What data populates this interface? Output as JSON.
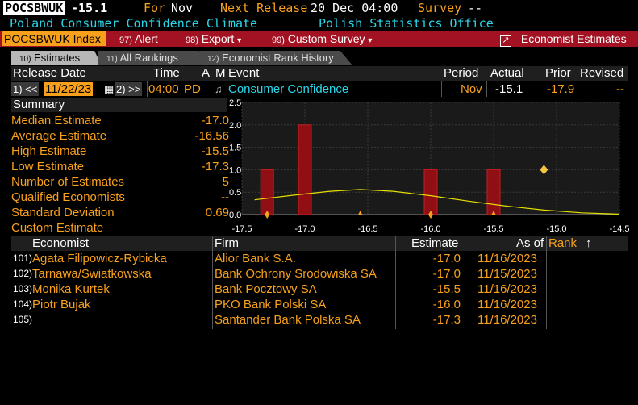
{
  "header": {
    "ticker": "POCSBWUK",
    "value": "-15.1",
    "for_label": "For",
    "for_value": "Nov",
    "next_release_label": "Next Release",
    "next_release_value": "20 Dec 04:00",
    "survey_label": "Survey",
    "survey_value": "--",
    "title": "Poland Consumer Confidence Climate",
    "source": "Polish Statistics Office"
  },
  "toolbar": {
    "index_label": "POCSBWUK Index",
    "alert_num": "97)",
    "alert_label": "Alert",
    "export_num": "98)",
    "export_label": "Export",
    "custom_num": "99)",
    "custom_label": "Custom Survey",
    "economist_label": "Economist Estimates",
    "caret": "▾",
    "launch_icon": "↗"
  },
  "tabs": [
    {
      "num": "10)",
      "label": "Estimates"
    },
    {
      "num": "11)",
      "label": "All Rankings"
    },
    {
      "num": "12)",
      "label": "Economist Rank History"
    }
  ],
  "release_table": {
    "headers": {
      "release_date": "Release Date",
      "time": "Time",
      "a": "A",
      "m": "M",
      "event": "Event",
      "period": "Period",
      "actual": "Actual",
      "prior": "Prior",
      "revised": "Revised"
    },
    "row": {
      "prev_btn": "1) <<",
      "date": "11/22/23",
      "calendar_icon": "▦",
      "next_btn": "2) >>",
      "time": "04:00",
      "tz": "PD",
      "bell_icon": "♫",
      "event": "Consumer Confidence",
      "period": "Nov",
      "actual": "-15.1",
      "prior": "-17.9",
      "revised": "--"
    }
  },
  "summary": {
    "title": "Summary",
    "rows": [
      {
        "label": "Median Estimate",
        "value": "-17.0"
      },
      {
        "label": "Average Estimate",
        "value": "-16.56"
      },
      {
        "label": "High Estimate",
        "value": "-15.5"
      },
      {
        "label": "Low Estimate",
        "value": "-17.3"
      },
      {
        "label": "Number of Estimates",
        "value": "5"
      },
      {
        "label": "Qualified Economists",
        "value": "--"
      },
      {
        "label": "Standard Deviation",
        "value": "0.69"
      },
      {
        "label": "Custom Estimate",
        "value": ""
      }
    ]
  },
  "chart_data": {
    "type": "bar",
    "x_ticks": [
      "-17.5",
      "-17.0",
      "-16.5",
      "-16.0",
      "-15.5",
      "-15.0",
      "-14.5"
    ],
    "x_tick_values": [
      -17.5,
      -17.0,
      -16.5,
      -16.0,
      -15.5,
      -15.0,
      -14.5
    ],
    "y_ticks": [
      "0.0",
      "0.5",
      "1.0",
      "1.5",
      "2.0",
      "2.5"
    ],
    "y_tick_values": [
      0,
      0.5,
      1.0,
      1.5,
      2.0,
      2.5
    ],
    "xlim": [
      -17.5,
      -14.5
    ],
    "ylim": [
      0,
      2.5
    ],
    "bars": [
      {
        "x": -17.3,
        "count": 1
      },
      {
        "x": -17.0,
        "count": 2
      },
      {
        "x": -16.0,
        "count": 1
      },
      {
        "x": -15.5,
        "count": 1
      }
    ],
    "distribution_curve": [
      {
        "x": -17.4,
        "y": 0.33
      },
      {
        "x": -17.1,
        "y": 0.43
      },
      {
        "x": -16.8,
        "y": 0.52
      },
      {
        "x": -16.56,
        "y": 0.56
      },
      {
        "x": -16.3,
        "y": 0.52
      },
      {
        "x": -16.0,
        "y": 0.42
      },
      {
        "x": -15.7,
        "y": 0.3
      },
      {
        "x": -15.4,
        "y": 0.19
      },
      {
        "x": -15.1,
        "y": 0.1
      },
      {
        "x": -14.8,
        "y": 0.04
      },
      {
        "x": -14.5,
        "y": 0.01
      }
    ],
    "actual_marker": {
      "x": -15.1,
      "y": 1.0
    },
    "axis_markers": [
      {
        "x": -17.3,
        "shape": "diamond"
      },
      {
        "x": -16.56,
        "shape": "triangle"
      },
      {
        "x": -16.0,
        "shape": "diamond"
      },
      {
        "x": -15.5,
        "shape": "triangle"
      }
    ],
    "grid": true,
    "colors": {
      "bar": "#8f0f14",
      "bar_edge": "#c21f1f",
      "curve": "#e6e000",
      "marker": "#f5c542",
      "axis_marker": "#f7a01c",
      "grid": "#3a3a3a",
      "bg": "#1a1a1a"
    }
  },
  "economists": {
    "headers": {
      "economist": "Economist",
      "firm": "Firm",
      "estimate": "Estimate",
      "as_of": "As of",
      "rank": "Rank",
      "sort_icon": "↑"
    },
    "rows": [
      {
        "num": "101)",
        "name": "Agata Filipowicz-Rybicka",
        "firm": "Alior Bank S.A.",
        "estimate": "-17.0",
        "as_of": "11/16/2023"
      },
      {
        "num": "102)",
        "name": "Tarnawa/Swiatkowska",
        "firm": "Bank Ochrony Srodowiska SA",
        "estimate": "-17.0",
        "as_of": "11/15/2023"
      },
      {
        "num": "103)",
        "name": "Monika Kurtek",
        "firm": "Bank Pocztowy SA",
        "estimate": "-15.5",
        "as_of": "11/16/2023"
      },
      {
        "num": "104)",
        "name": "Piotr Bujak",
        "firm": "PKO Bank Polski SA",
        "estimate": "-16.0",
        "as_of": "11/16/2023"
      },
      {
        "num": "105)",
        "name": "",
        "firm": "Santander Bank Polska SA",
        "estimate": "-17.3",
        "as_of": "11/16/2023"
      }
    ]
  }
}
